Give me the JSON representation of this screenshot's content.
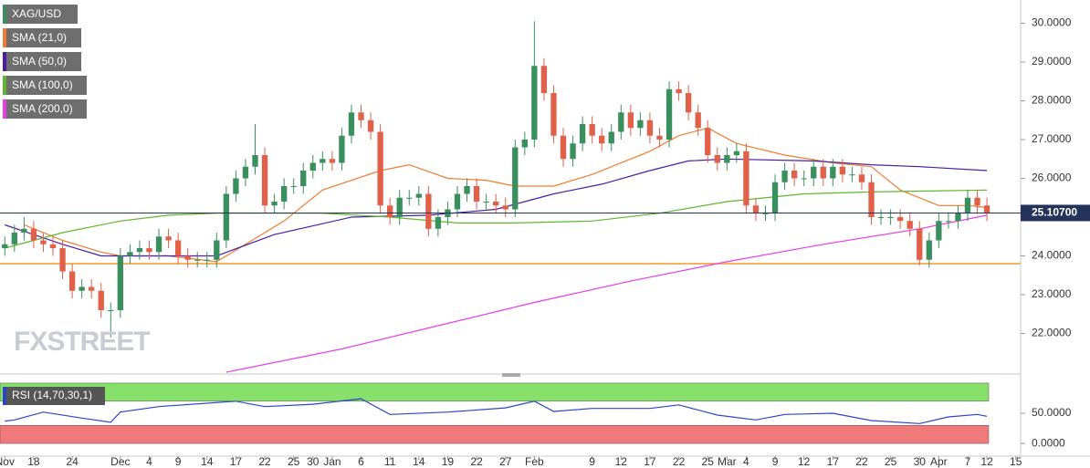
{
  "chart_data": [
    {
      "type": "candlestick",
      "name": "XAG/USD",
      "up_color": "#3a8f5e",
      "down_color": "#e0604a",
      "watermark": "FXSTREET",
      "x": [
        0,
        1,
        2,
        3,
        4,
        5,
        6,
        7,
        8,
        9,
        10,
        11,
        12,
        13,
        14,
        15,
        16,
        17,
        18,
        19,
        20,
        21,
        22,
        23,
        24,
        25,
        26,
        27,
        28,
        29,
        30,
        31,
        32,
        33,
        34,
        35,
        36,
        37,
        38,
        39,
        40,
        41,
        42,
        43,
        44,
        45,
        46,
        47,
        48,
        49,
        50,
        51,
        52,
        53,
        54,
        55,
        56,
        57,
        58,
        59,
        60,
        61,
        62,
        63,
        64,
        65,
        66,
        67,
        68,
        69,
        70,
        71,
        72,
        73,
        74,
        75,
        76,
        77,
        78,
        79,
        80,
        81,
        82,
        83,
        84,
        85,
        86,
        87,
        88,
        89,
        90,
        91,
        92,
        93,
        94,
        95,
        96,
        97,
        98,
        99,
        100,
        101,
        102
      ],
      "open": [
        24.2,
        24.3,
        24.6,
        24.7,
        24.4,
        24.3,
        24.2,
        23.6,
        23.1,
        23.2,
        23.1,
        22.6,
        22.6,
        24.0,
        24.1,
        24.2,
        24.1,
        24.5,
        24.4,
        24.0,
        23.9,
        23.9,
        23.9,
        24.4,
        25.6,
        26.0,
        26.3,
        26.6,
        25.3,
        25.4,
        25.8,
        25.8,
        26.2,
        26.4,
        26.5,
        26.4,
        27.1,
        27.7,
        27.5,
        27.2,
        25.3,
        25.0,
        25.5,
        25.5,
        25.6,
        24.7,
        25.0,
        25.2,
        25.6,
        25.8,
        25.4,
        25.4,
        25.3,
        25.2,
        26.8,
        27.0,
        28.9,
        28.2,
        27.1,
        26.5,
        26.9,
        27.4,
        27.1,
        26.9,
        27.2,
        27.7,
        27.3,
        27.5,
        27.1,
        27.0,
        28.3,
        28.2,
        27.7,
        27.3,
        26.6,
        26.4,
        26.6,
        26.7,
        25.3,
        25.1,
        25.1,
        25.9,
        26.2,
        26.0,
        26.0,
        26.3,
        26.0,
        26.3,
        26.1,
        26.1,
        25.9,
        25.0,
        25.0,
        25.0,
        24.9,
        24.7,
        23.9,
        24.4,
        24.9,
        24.9,
        25.1,
        25.5,
        25.3
      ],
      "high": [
        24.5,
        24.8,
        25.0,
        24.9,
        24.6,
        24.5,
        24.4,
        23.8,
        23.4,
        23.4,
        23.3,
        22.8,
        24.2,
        24.3,
        24.4,
        24.4,
        24.7,
        24.7,
        24.6,
        24.2,
        24.1,
        24.1,
        24.6,
        25.8,
        26.2,
        26.5,
        27.4,
        26.8,
        25.6,
        26.0,
        26.0,
        26.4,
        26.6,
        26.7,
        26.7,
        27.3,
        27.9,
        27.9,
        27.7,
        27.4,
        25.5,
        25.7,
        25.7,
        25.8,
        25.8,
        25.2,
        25.4,
        25.8,
        26.0,
        26.0,
        25.6,
        25.6,
        25.5,
        27.0,
        27.2,
        30.05,
        29.1,
        28.4,
        27.3,
        27.1,
        27.6,
        27.6,
        27.3,
        27.4,
        27.9,
        27.9,
        27.7,
        27.7,
        27.3,
        28.5,
        28.5,
        28.4,
        27.9,
        27.5,
        26.8,
        26.8,
        26.9,
        26.9,
        25.5,
        25.3,
        26.1,
        26.4,
        26.4,
        26.2,
        26.5,
        26.5,
        26.5,
        26.5,
        26.3,
        26.3,
        26.1,
        25.2,
        25.2,
        25.2,
        25.1,
        24.9,
        24.6,
        25.1,
        25.1,
        25.3,
        25.7,
        25.7,
        25.5
      ],
      "low": [
        24.0,
        24.1,
        24.4,
        24.2,
        24.1,
        24.0,
        23.4,
        22.9,
        22.9,
        22.9,
        22.4,
        21.9,
        22.4,
        23.8,
        23.9,
        23.9,
        23.9,
        24.2,
        23.8,
        23.7,
        23.7,
        23.7,
        23.7,
        24.2,
        25.4,
        25.8,
        26.1,
        25.1,
        25.1,
        25.2,
        25.6,
        25.6,
        26.0,
        26.2,
        26.2,
        26.2,
        26.9,
        27.3,
        27.0,
        25.1,
        24.8,
        24.8,
        25.3,
        25.3,
        24.5,
        24.5,
        24.8,
        25.0,
        25.4,
        25.2,
        25.2,
        25.1,
        25.0,
        25.0,
        26.6,
        26.8,
        28.0,
        26.9,
        26.3,
        26.3,
        26.7,
        26.9,
        26.7,
        26.7,
        27.0,
        27.1,
        27.1,
        26.9,
        26.8,
        26.8,
        28.0,
        27.5,
        27.1,
        26.4,
        26.2,
        26.2,
        26.4,
        25.1,
        24.9,
        24.9,
        24.9,
        25.7,
        25.8,
        25.8,
        25.8,
        25.8,
        25.8,
        25.9,
        25.9,
        25.7,
        24.8,
        24.8,
        24.8,
        24.7,
        24.5,
        23.75,
        23.7,
        24.2,
        24.7,
        24.7,
        24.9,
        25.1,
        24.9
      ],
      "close": [
        24.3,
        24.6,
        24.7,
        24.4,
        24.3,
        24.2,
        23.6,
        23.1,
        23.2,
        23.1,
        22.6,
        22.6,
        24.0,
        24.1,
        24.2,
        24.1,
        24.5,
        24.4,
        24.0,
        23.9,
        23.9,
        23.9,
        24.4,
        25.6,
        26.0,
        26.3,
        26.6,
        25.3,
        25.4,
        25.8,
        25.8,
        26.2,
        26.4,
        26.5,
        26.4,
        27.1,
        27.7,
        27.5,
        27.2,
        25.3,
        25.0,
        25.5,
        25.5,
        25.6,
        24.7,
        25.0,
        25.2,
        25.6,
        25.8,
        25.4,
        25.4,
        25.3,
        25.2,
        26.8,
        27.0,
        28.9,
        28.2,
        27.1,
        26.5,
        26.9,
        27.4,
        27.1,
        26.9,
        27.2,
        27.7,
        27.3,
        27.5,
        27.1,
        27.0,
        28.3,
        28.2,
        27.7,
        27.3,
        26.6,
        26.4,
        26.6,
        26.7,
        25.3,
        25.1,
        25.1,
        25.9,
        26.2,
        26.0,
        26.0,
        26.3,
        26.0,
        26.3,
        26.1,
        26.1,
        25.9,
        25.0,
        25.0,
        25.0,
        24.9,
        24.7,
        23.9,
        24.4,
        24.9,
        24.9,
        25.1,
        25.5,
        25.3,
        25.1
      ],
      "series": [
        {
          "name": "SMA (21,0)",
          "color": "#f27d2e",
          "x": [
            2,
            6,
            10,
            12,
            17,
            22,
            29,
            33,
            39,
            42,
            46,
            50,
            53,
            57,
            61,
            67,
            70,
            73,
            76,
            81,
            86,
            90,
            93,
            97,
            100,
            102
          ],
          "values": [
            24.8,
            24.4,
            24.1,
            24.0,
            24.0,
            23.85,
            24.9,
            25.7,
            26.2,
            26.35,
            26.0,
            25.95,
            25.8,
            25.8,
            26.1,
            26.7,
            27.1,
            27.3,
            26.9,
            26.6,
            26.4,
            26.3,
            25.7,
            25.3,
            25.3,
            25.25
          ]
        },
        {
          "name": "SMA (50,0)",
          "color": "#4a1fa8",
          "x": [
            0,
            6,
            10,
            14,
            22,
            28,
            36,
            44,
            51,
            57,
            62,
            67,
            71,
            75,
            84,
            90,
            95,
            102
          ],
          "values": [
            24.8,
            24.3,
            24.0,
            24.0,
            24.0,
            24.55,
            25.0,
            25.05,
            25.2,
            25.6,
            25.85,
            26.2,
            26.45,
            26.5,
            26.45,
            26.35,
            26.3,
            26.2
          ]
        },
        {
          "name": "SMA (100,0)",
          "color": "#5cb82e",
          "x": [
            0,
            6,
            12,
            17,
            22,
            33,
            40,
            47,
            53,
            61,
            68,
            75,
            83,
            90,
            102
          ],
          "values": [
            24.2,
            24.6,
            24.9,
            25.05,
            25.1,
            25.1,
            25.0,
            24.85,
            24.85,
            24.9,
            25.1,
            25.4,
            25.6,
            25.65,
            25.7
          ]
        },
        {
          "name": "SMA (200,0)",
          "color": "#e83ee8",
          "x": [
            23,
            35,
            45,
            55,
            65,
            75,
            85,
            95,
            102
          ],
          "values": [
            21.0,
            21.6,
            22.2,
            22.8,
            23.35,
            23.85,
            24.3,
            24.7,
            25.05
          ]
        }
      ],
      "hlines": [
        {
          "value": 23.8,
          "color": "#f29a2e"
        }
      ],
      "last_price": {
        "value": 25.107,
        "label": "25.10700",
        "color": "#25325a"
      },
      "xlim": [
        -0.5,
        105.5
      ],
      "ylim": [
        21.0,
        30.6
      ],
      "yticks": [
        {
          "value": 22,
          "label": "22.0000"
        },
        {
          "value": 23,
          "label": "23.0000"
        },
        {
          "value": 24,
          "label": "24.0000"
        },
        {
          "value": 25,
          "label": "25.0000"
        },
        {
          "value": 26,
          "label": "26.0000"
        },
        {
          "value": 27,
          "label": "27.0000"
        },
        {
          "value": 28,
          "label": "28.0000"
        },
        {
          "value": 29,
          "label": "29.0000"
        },
        {
          "value": 30,
          "label": "30.0000"
        }
      ],
      "xticks": [
        {
          "value": 0,
          "label": "Nov"
        },
        {
          "value": 3,
          "label": "18"
        },
        {
          "value": 7,
          "label": "24"
        },
        {
          "value": 12,
          "label": "Dec"
        },
        {
          "value": 15,
          "label": "4"
        },
        {
          "value": 18,
          "label": "9"
        },
        {
          "value": 21,
          "label": "14"
        },
        {
          "value": 24,
          "label": "17"
        },
        {
          "value": 27,
          "label": "22"
        },
        {
          "value": 30,
          "label": "25"
        },
        {
          "value": 32,
          "label": "30"
        },
        {
          "value": 34,
          "label": "Jan"
        },
        {
          "value": 37,
          "label": "6"
        },
        {
          "value": 40,
          "label": "11"
        },
        {
          "value": 43,
          "label": "14"
        },
        {
          "value": 46,
          "label": "19"
        },
        {
          "value": 49,
          "label": "22"
        },
        {
          "value": 52,
          "label": "27"
        },
        {
          "value": 55,
          "label": "Feb"
        },
        {
          "value": 61,
          "label": "9"
        },
        {
          "value": 64,
          "label": "12"
        },
        {
          "value": 67,
          "label": "17"
        },
        {
          "value": 70,
          "label": "22"
        },
        {
          "value": 73,
          "label": "25"
        },
        {
          "value": 75,
          "label": "Mar"
        },
        {
          "value": 77,
          "label": "4"
        },
        {
          "value": 80,
          "label": "9"
        },
        {
          "value": 83,
          "label": "12"
        },
        {
          "value": 86,
          "label": "17"
        },
        {
          "value": 89,
          "label": "22"
        },
        {
          "value": 92,
          "label": "25"
        },
        {
          "value": 95,
          "label": "30"
        },
        {
          "value": 97,
          "label": "Apr"
        },
        {
          "value": 100,
          "label": "7"
        },
        {
          "value": 102,
          "label": "12"
        },
        {
          "value": 105,
          "label": "15"
        }
      ]
    },
    {
      "type": "line",
      "title": "RSI (14,70,30,1)",
      "series": [
        {
          "color": "#2b45c8",
          "x": [
            0,
            1,
            4,
            8,
            11,
            12,
            16,
            24,
            27,
            32,
            37,
            40,
            46,
            52,
            55,
            57,
            61,
            67,
            70,
            74,
            78,
            81,
            86,
            90,
            95,
            98,
            101,
            102
          ],
          "values": [
            37,
            39,
            52,
            42,
            35,
            52,
            61,
            70,
            61,
            65,
            74,
            48,
            52,
            59,
            70,
            53,
            58,
            58,
            64,
            47,
            39,
            48,
            50,
            38,
            33,
            44,
            48,
            45
          ]
        }
      ],
      "zones": [
        {
          "from": 70,
          "to": 100,
          "color": "#86e06a"
        },
        {
          "from": 0,
          "to": 30,
          "color": "#f07a7a"
        }
      ],
      "xlim": [
        -0.5,
        105.5
      ],
      "ylim": [
        -21,
        112
      ],
      "yticks": [
        {
          "value": 0,
          "label": "0.0000"
        },
        {
          "value": 50,
          "label": "50.0000"
        }
      ]
    }
  ]
}
